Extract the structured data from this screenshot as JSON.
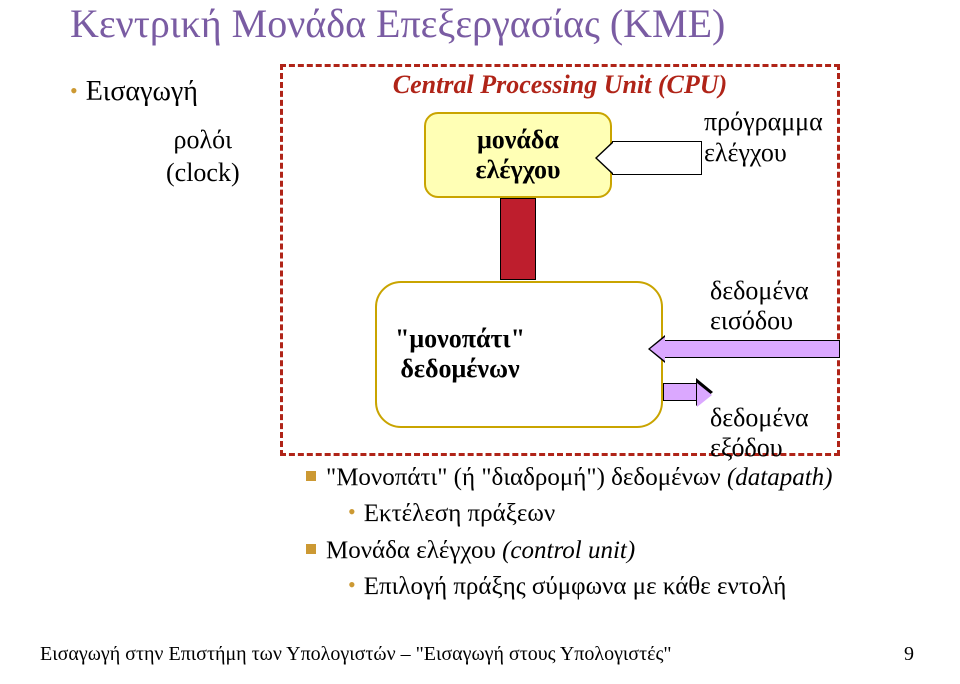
{
  "colors": {
    "background": "#ffffff",
    "title": "#7a5ca3",
    "text": "#000000",
    "cpu_border": "#b02418",
    "cpu_title": "#b02418",
    "box_fill": "#ffffb5",
    "box_border": "#c9a400",
    "box_text": "#000000",
    "dp_fill": "#ffffff",
    "dp_border": "#c9a400",
    "arrow_red": "#be1e2d",
    "arrow_pink": "#dba8ff"
  },
  "title": "Κεντρική Μονάδα Επεξεργασίας (ΚΜΕ)",
  "intro_bullet": "Εισαγωγή",
  "cpu_title": "Central Processing Unit (CPU)",
  "clock": {
    "line1": "ρολόι",
    "line2": "(clock)"
  },
  "control_unit": {
    "line1": "μονάδα",
    "line2": "ελέγχου"
  },
  "program_control": {
    "line1": "πρόγραμμα",
    "line2": "ελέγχου"
  },
  "datapath": {
    "line1": "\"μονοπάτι\"",
    "line2": "δεδομένων"
  },
  "data_in": {
    "line1": "δεδομένα",
    "line2": "εισόδου"
  },
  "data_out": {
    "line1": "δεδομένα",
    "line2": "εξόδου"
  },
  "bullets": {
    "b1_prefix": "\"Μονοπάτι\" (ή \"διαδρομή\") δεδομένων ",
    "b1_italic": "(datapath)",
    "b1_sub": "Εκτέλεση πράξεων",
    "b2_prefix": "Μονάδα ελέγχου ",
    "b2_italic": "(control unit)",
    "b2_sub": "Επιλογή πράξης σύμφωνα με κάθε εντολή"
  },
  "footer": "Εισαγωγή στην Επιστήμη των Υπολογιστών – \"Εισαγωγή στους Υπολογιστές\"",
  "pagenum": "9"
}
